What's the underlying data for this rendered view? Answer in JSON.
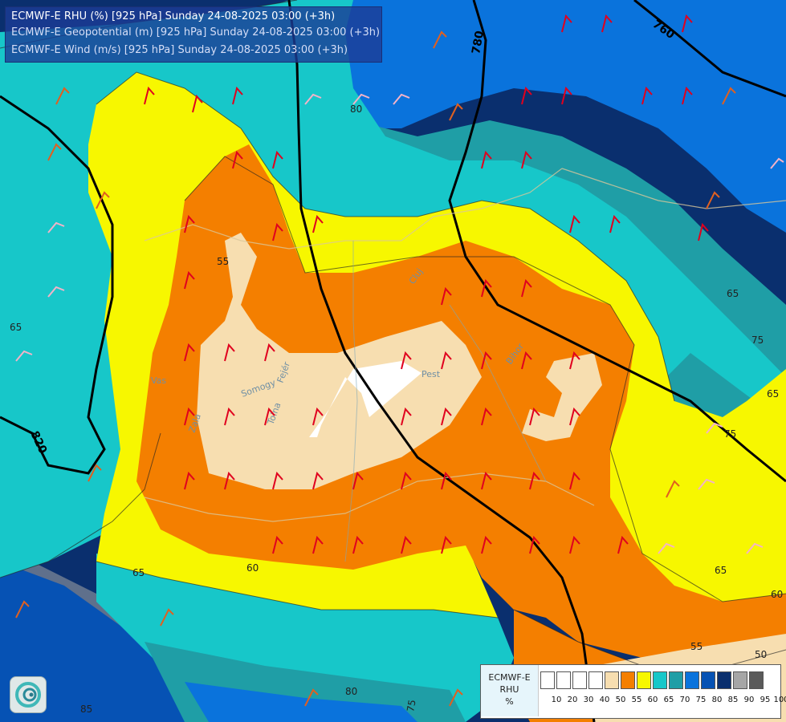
{
  "header": {
    "line1": "ECMWF-E RHU (%) [925 hPa] Sunday 24-08-2025 03:00 (+3h)",
    "line2": "ECMWF-E Geopotential (m) [925 hPa] Sunday 24-08-2025 03:00 (+3h)",
    "line3": "ECMWF-E Wind (m/s) [925 hPa] Sunday 24-08-2025 03:00 (+3h)"
  },
  "legend": {
    "title_line1": "ECMWF-E",
    "title_line2": "RHU",
    "title_line3": "%",
    "ticks": [
      "10",
      "20",
      "30",
      "40",
      "50",
      "55",
      "60",
      "65",
      "70",
      "75",
      "80",
      "85",
      "90",
      "95",
      "100"
    ],
    "colors": [
      "#ffffff",
      "#ffffff",
      "#ffffff",
      "#ffffff",
      "#f7deb0",
      "#f47f00",
      "#f7f700",
      "#17c7c9",
      "#1f9ea6",
      "#0a73dc",
      "#0652b4",
      "#0a2f6e",
      "#a6a6a6",
      "#5a5a5a"
    ]
  },
  "geopotential_labels": [
    "760",
    "780",
    "820"
  ],
  "rhu_labels": [
    "55",
    "65",
    "80",
    "65",
    "75",
    "65",
    "75",
    "65",
    "60",
    "65",
    "60",
    "55",
    "50",
    "60",
    "80",
    "75",
    "85"
  ],
  "place_labels": [
    "Vas",
    "Zala",
    "Somogy",
    "Fejér",
    "Tolna",
    "Pest",
    "Bihor",
    "Cluj"
  ],
  "icons": {
    "logo": "meteo-swirl-logo"
  }
}
